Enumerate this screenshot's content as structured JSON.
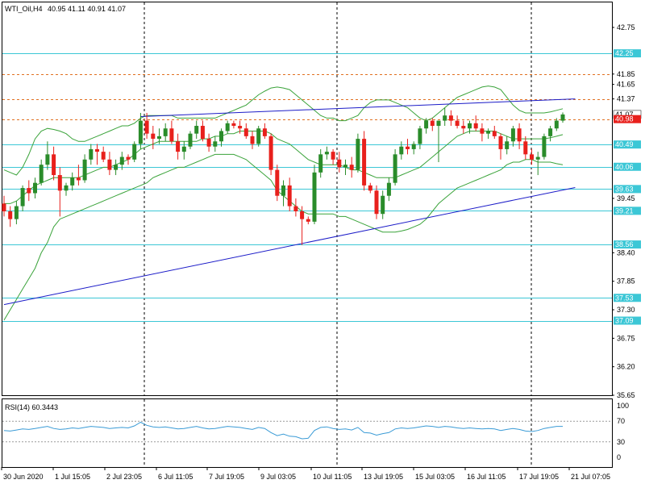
{
  "header": {
    "symbol": "WTI_Oil,H4",
    "ohlc": "40.95 41.11 40.91 41.07"
  },
  "rsi": {
    "title": "RSI(14) 60.3443",
    "levels": [
      70,
      30
    ],
    "axis_labels": [
      "100",
      "70",
      "30",
      "0"
    ]
  },
  "colors": {
    "bull": "#2a8c2a",
    "bear": "#e8201c",
    "bollinger": "#3aa33a",
    "support_line": "#3cc7d6",
    "resistance_line": "#e07020",
    "trendline": "#1c1cc8",
    "rsi_line": "#3a9bd6",
    "price_label_bg": "#3cc7d6",
    "bid_label_bg": "#e8201c"
  },
  "chart_data": {
    "type": "candlestick",
    "price_axis_ticks": [
      42.75,
      42.25,
      41.85,
      41.65,
      41.37,
      41.07,
      40.98,
      40.49,
      40.06,
      39.63,
      39.45,
      39.21,
      38.56,
      38.4,
      37.85,
      37.53,
      37.3,
      37.09,
      36.75,
      36.2,
      35.65
    ],
    "time_labels": [
      "30 Jun 2020",
      "1 Jul 15:05",
      "2 Jul 23:05",
      "6 Jul 11:05",
      "7 Jul 19:05",
      "9 Jul 03:05",
      "10 Jul 11:05",
      "13 Jul 19:05",
      "15 Jul 03:05",
      "16 Jul 11:05",
      "17 Jul 19:05",
      "21 Jul 07:05"
    ],
    "horizontal_levels": {
      "support_resistance": [
        42.25,
        40.49,
        40.06,
        39.63,
        39.21,
        38.56,
        37.53,
        37.09
      ],
      "dashed": [
        41.85,
        41.37,
        40.98
      ]
    },
    "current_price": 41.07,
    "bid_price": 40.98,
    "candles": [
      [
        39.35,
        39.5,
        39.1,
        39.2
      ],
      [
        39.2,
        39.3,
        38.9,
        39.05
      ],
      [
        39.05,
        39.4,
        38.95,
        39.3
      ],
      [
        39.3,
        39.7,
        39.2,
        39.65
      ],
      [
        39.65,
        39.8,
        39.4,
        39.55
      ],
      [
        39.55,
        39.85,
        39.45,
        39.75
      ],
      [
        39.75,
        40.2,
        39.7,
        40.1
      ],
      [
        40.1,
        40.55,
        40.0,
        40.3
      ],
      [
        40.3,
        40.45,
        39.8,
        39.9
      ],
      [
        39.9,
        40.05,
        39.1,
        39.6
      ],
      [
        39.6,
        39.75,
        39.5,
        39.7
      ],
      [
        39.7,
        39.95,
        39.6,
        39.85
      ],
      [
        39.85,
        40.1,
        39.7,
        39.8
      ],
      [
        39.8,
        40.3,
        39.75,
        40.2
      ],
      [
        40.2,
        40.5,
        40.1,
        40.4
      ],
      [
        40.4,
        40.5,
        40.1,
        40.35
      ],
      [
        40.35,
        40.45,
        40.15,
        40.2
      ],
      [
        40.2,
        40.35,
        39.9,
        40.0
      ],
      [
        40.0,
        40.2,
        39.9,
        40.1
      ],
      [
        40.1,
        40.35,
        40.0,
        40.25
      ],
      [
        40.25,
        40.3,
        40.1,
        40.2
      ],
      [
        40.2,
        40.55,
        40.15,
        40.5
      ],
      [
        40.5,
        41.1,
        40.4,
        40.95
      ],
      [
        40.95,
        41.1,
        40.6,
        40.7
      ],
      [
        40.7,
        40.85,
        40.4,
        40.6
      ],
      [
        40.6,
        40.8,
        40.5,
        40.65
      ],
      [
        40.65,
        40.9,
        40.55,
        40.8
      ],
      [
        40.8,
        40.95,
        40.5,
        40.55
      ],
      [
        40.55,
        40.7,
        40.2,
        40.35
      ],
      [
        40.35,
        40.55,
        40.2,
        40.45
      ],
      [
        40.45,
        40.75,
        40.4,
        40.7
      ],
      [
        40.7,
        40.95,
        40.6,
        40.85
      ],
      [
        40.85,
        40.95,
        40.55,
        40.6
      ],
      [
        40.6,
        40.7,
        40.35,
        40.45
      ],
      [
        40.45,
        40.65,
        40.35,
        40.55
      ],
      [
        40.55,
        40.8,
        40.45,
        40.75
      ],
      [
        40.75,
        40.95,
        40.7,
        40.9
      ],
      [
        40.9,
        40.95,
        40.8,
        40.85
      ],
      [
        40.85,
        40.95,
        40.7,
        40.8
      ],
      [
        40.8,
        40.9,
        40.6,
        40.65
      ],
      [
        40.65,
        40.75,
        40.4,
        40.5
      ],
      [
        40.5,
        40.85,
        40.45,
        40.8
      ],
      [
        40.8,
        40.9,
        40.6,
        40.65
      ],
      [
        40.65,
        40.7,
        39.9,
        40.0
      ],
      [
        40.0,
        40.1,
        39.4,
        39.5
      ],
      [
        39.5,
        39.8,
        39.3,
        39.7
      ],
      [
        39.7,
        39.85,
        39.2,
        39.3
      ],
      [
        39.3,
        39.45,
        39.1,
        39.2
      ],
      [
        39.2,
        39.3,
        38.55,
        39.05
      ],
      [
        39.05,
        39.1,
        38.95,
        39.0
      ],
      [
        39.0,
        40.1,
        38.95,
        39.95
      ],
      [
        39.95,
        40.4,
        39.85,
        40.3
      ],
      [
        40.3,
        40.45,
        40.2,
        40.35
      ],
      [
        40.35,
        40.4,
        40.1,
        40.2
      ],
      [
        40.2,
        40.35,
        39.95,
        40.05
      ],
      [
        40.05,
        40.2,
        39.9,
        40.1
      ],
      [
        40.1,
        40.25,
        39.85,
        40.0
      ],
      [
        40.0,
        40.7,
        39.95,
        40.6
      ],
      [
        40.6,
        40.75,
        39.6,
        39.7
      ],
      [
        39.7,
        39.75,
        39.55,
        39.6
      ],
      [
        39.6,
        39.7,
        39.05,
        39.15
      ],
      [
        39.15,
        39.6,
        39.05,
        39.5
      ],
      [
        39.5,
        39.85,
        39.4,
        39.75
      ],
      [
        39.75,
        40.4,
        39.7,
        40.3
      ],
      [
        40.3,
        40.55,
        40.2,
        40.45
      ],
      [
        40.45,
        40.6,
        40.3,
        40.4
      ],
      [
        40.4,
        40.55,
        40.3,
        40.5
      ],
      [
        40.5,
        40.85,
        40.4,
        40.8
      ],
      [
        40.8,
        41.0,
        40.7,
        40.95
      ],
      [
        40.95,
        41.0,
        40.75,
        40.85
      ],
      [
        40.85,
        40.95,
        40.15,
        40.95
      ],
      [
        40.95,
        41.2,
        40.85,
        41.05
      ],
      [
        41.05,
        41.15,
        40.85,
        40.95
      ],
      [
        40.95,
        41.05,
        40.8,
        40.85
      ],
      [
        40.85,
        40.95,
        40.7,
        40.8
      ],
      [
        40.8,
        40.95,
        40.7,
        40.9
      ],
      [
        40.9,
        41.05,
        40.75,
        40.8
      ],
      [
        40.8,
        40.9,
        40.55,
        40.7
      ],
      [
        40.7,
        40.8,
        40.6,
        40.75
      ],
      [
        40.75,
        40.85,
        40.6,
        40.65
      ],
      [
        40.65,
        40.7,
        40.2,
        40.4
      ],
      [
        40.4,
        40.65,
        40.3,
        40.55
      ],
      [
        40.55,
        40.85,
        40.45,
        40.8
      ],
      [
        40.8,
        40.9,
        40.4,
        40.55
      ],
      [
        40.55,
        40.65,
        40.2,
        40.3
      ],
      [
        40.3,
        40.4,
        40.1,
        40.2
      ],
      [
        40.2,
        40.35,
        39.9,
        40.25
      ],
      [
        40.25,
        40.7,
        40.2,
        40.65
      ],
      [
        40.65,
        40.85,
        40.55,
        40.8
      ],
      [
        40.8,
        41.0,
        40.75,
        40.95
      ],
      [
        40.95,
        41.11,
        40.91,
        41.07
      ]
    ],
    "bollinger": {
      "upper": [
        40.0,
        39.95,
        39.9,
        40.05,
        40.3,
        40.6,
        40.75,
        40.8,
        40.78,
        40.75,
        40.7,
        40.6,
        40.55,
        40.55,
        40.6,
        40.65,
        40.7,
        40.75,
        40.8,
        40.85,
        40.85,
        40.9,
        41.0,
        41.05,
        41.05,
        41.05,
        41.05,
        41.05,
        41.0,
        41.0,
        41.0,
        41.0,
        41.0,
        41.0,
        41.0,
        41.05,
        41.1,
        41.15,
        41.2,
        41.25,
        41.35,
        41.45,
        41.52,
        41.58,
        41.6,
        41.58,
        41.55,
        41.45,
        41.35,
        41.25,
        41.15,
        41.05,
        41.0,
        41.0,
        40.95,
        40.95,
        41.0,
        41.05,
        41.2,
        41.3,
        41.35,
        41.35,
        41.35,
        41.3,
        41.25,
        41.2,
        41.1,
        41.0,
        40.95,
        41.0,
        41.1,
        41.2,
        41.3,
        41.4,
        41.45,
        41.5,
        41.55,
        41.6,
        41.62,
        41.6,
        41.55,
        41.4,
        41.25,
        41.15,
        41.1,
        41.1,
        41.1,
        41.1,
        41.12,
        41.15,
        41.18
      ],
      "middle": [
        39.35,
        39.35,
        39.4,
        39.5,
        39.6,
        39.7,
        39.75,
        39.8,
        39.85,
        39.85,
        39.85,
        39.85,
        39.85,
        39.9,
        39.95,
        40.0,
        40.05,
        40.05,
        40.1,
        40.15,
        40.2,
        40.3,
        40.4,
        40.45,
        40.5,
        40.55,
        40.55,
        40.55,
        40.55,
        40.55,
        40.55,
        40.55,
        40.6,
        40.6,
        40.65,
        40.65,
        40.7,
        40.7,
        40.75,
        40.75,
        40.75,
        40.75,
        40.75,
        40.7,
        40.6,
        40.55,
        40.5,
        40.4,
        40.3,
        40.2,
        40.15,
        40.1,
        40.1,
        40.1,
        40.1,
        40.05,
        40.0,
        40.0,
        39.95,
        39.9,
        39.85,
        39.85,
        39.85,
        39.85,
        39.9,
        39.95,
        40.0,
        40.05,
        40.15,
        40.25,
        40.35,
        40.45,
        40.55,
        40.65,
        40.7,
        40.75,
        40.75,
        40.75,
        40.75,
        40.75,
        40.7,
        40.65,
        40.6,
        40.6,
        40.6,
        40.6,
        40.6,
        40.6,
        40.62,
        40.65,
        40.68
      ],
      "lower": [
        37.1,
        37.3,
        37.5,
        37.7,
        37.9,
        38.1,
        38.4,
        38.6,
        38.9,
        39.05,
        39.1,
        39.15,
        39.2,
        39.25,
        39.3,
        39.35,
        39.4,
        39.45,
        39.5,
        39.55,
        39.6,
        39.65,
        39.7,
        39.75,
        39.85,
        39.9,
        39.95,
        40.0,
        40.05,
        40.05,
        40.1,
        40.15,
        40.2,
        40.25,
        40.3,
        40.3,
        40.3,
        40.3,
        40.25,
        40.2,
        40.1,
        40.0,
        39.9,
        39.8,
        39.6,
        39.5,
        39.4,
        39.3,
        39.2,
        39.15,
        39.15,
        39.15,
        39.15,
        39.15,
        39.1,
        39.1,
        39.05,
        39.0,
        38.95,
        38.9,
        38.85,
        38.8,
        38.8,
        38.8,
        38.82,
        38.85,
        38.9,
        38.95,
        39.05,
        39.2,
        39.35,
        39.45,
        39.55,
        39.65,
        39.7,
        39.75,
        39.8,
        39.85,
        39.9,
        39.95,
        40.0,
        40.1,
        40.15,
        40.15,
        40.2,
        40.2,
        40.15,
        40.15,
        40.15,
        40.12,
        40.1
      ]
    },
    "trendlines": [
      {
        "from": [
          0,
          37.4
        ],
        "to": [
          92,
          39.66
        ]
      },
      {
        "from": [
          22,
          41.03
        ],
        "to": [
          92,
          41.37
        ]
      }
    ],
    "rsi_values": [
      52,
      51,
      53,
      55,
      54,
      56,
      58,
      60,
      56,
      54,
      55,
      57,
      56,
      58,
      60,
      59,
      58,
      56,
      57,
      58,
      57,
      61,
      68,
      62,
      59,
      58,
      59,
      57,
      55,
      56,
      58,
      60,
      57,
      55,
      56,
      58,
      60,
      59,
      58,
      56,
      54,
      58,
      56,
      48,
      42,
      45,
      41,
      40,
      36,
      37,
      52,
      58,
      59,
      56,
      54,
      55,
      53,
      58,
      48,
      47,
      43,
      46,
      48,
      55,
      57,
      56,
      57,
      59,
      61,
      60,
      58,
      60,
      59,
      57,
      56,
      57,
      56,
      55,
      56,
      55,
      52,
      54,
      56,
      54,
      51,
      50,
      52,
      56,
      58,
      60,
      60
    ]
  }
}
